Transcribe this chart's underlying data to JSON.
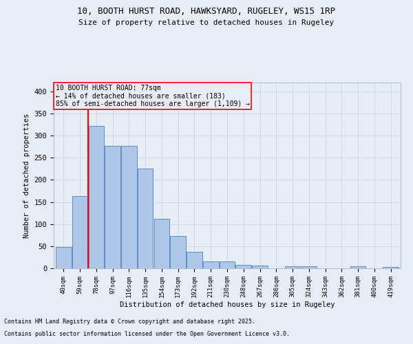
{
  "title_line1": "10, BOOTH HURST ROAD, HAWKSYARD, RUGELEY, WS15 1RP",
  "title_line2": "Size of property relative to detached houses in Rugeley",
  "xlabel": "Distribution of detached houses by size in Rugeley",
  "ylabel": "Number of detached properties",
  "footer_line1": "Contains HM Land Registry data © Crown copyright and database right 2025.",
  "footer_line2": "Contains public sector information licensed under the Open Government Licence v3.0.",
  "annotation_line1": "10 BOOTH HURST ROAD: 77sqm",
  "annotation_line2": "← 14% of detached houses are smaller (183)",
  "annotation_line3": "85% of semi-detached houses are larger (1,109) →",
  "bar_labels": [
    "40sqm",
    "59sqm",
    "78sqm",
    "97sqm",
    "116sqm",
    "135sqm",
    "154sqm",
    "173sqm",
    "192sqm",
    "211sqm",
    "230sqm",
    "248sqm",
    "267sqm",
    "286sqm",
    "305sqm",
    "324sqm",
    "343sqm",
    "362sqm",
    "381sqm",
    "400sqm",
    "419sqm"
  ],
  "bar_values": [
    48,
    163,
    322,
    277,
    277,
    225,
    112,
    73,
    38,
    15,
    15,
    8,
    6,
    0,
    4,
    4,
    0,
    0,
    4,
    0,
    3
  ],
  "bar_color": "#aec6e8",
  "bar_edge_color": "#5a8fc0",
  "grid_color": "#d0d8e8",
  "background_color": "#e8edf5",
  "vline_x": 1.5,
  "vline_color": "red",
  "annotation_box_color": "red",
  "ylim": [
    0,
    420
  ],
  "yticks": [
    0,
    50,
    100,
    150,
    200,
    250,
    300,
    350,
    400
  ]
}
